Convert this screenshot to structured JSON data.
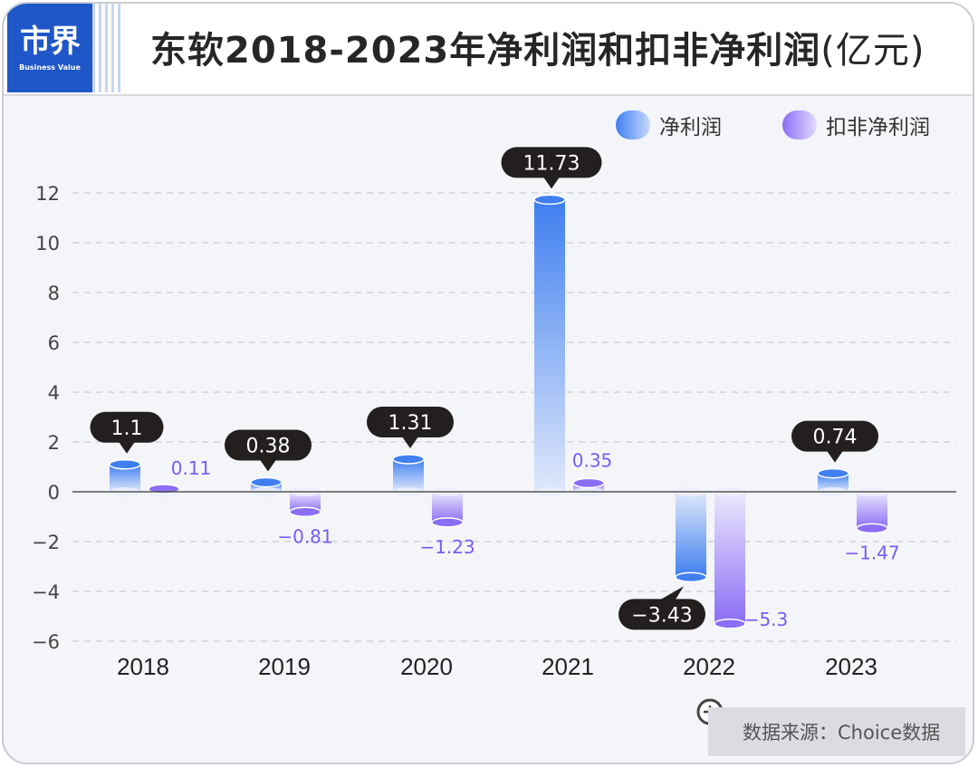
{
  "header": {
    "logo_main": "市界",
    "logo_sub": "Business Value",
    "title": "东软2018-2023年净利润和扣非净利润",
    "title_unit": "(亿元)"
  },
  "legend": [
    {
      "label": "净利润",
      "color": "#3f7ff0"
    },
    {
      "label": "扣非净利润",
      "color": "#8b6ef5"
    }
  ],
  "source": "数据来源：Choice数据",
  "chart_data": {
    "type": "bar",
    "categories": [
      "2018",
      "2019",
      "2020",
      "2021",
      "2022",
      "2023"
    ],
    "series": [
      {
        "name": "净利润",
        "values": [
          1.1,
          0.38,
          1.31,
          11.73,
          -3.43,
          0.74
        ],
        "labels": [
          "1.1",
          "0.38",
          "1.31",
          "11.73",
          "−3.43",
          "0.74"
        ]
      },
      {
        "name": "扣非净利润",
        "values": [
          0.11,
          -0.81,
          -1.23,
          0.35,
          -5.3,
          -1.47
        ],
        "labels": [
          "0.11",
          "−0.81",
          "−1.23",
          "0.35",
          "−5.3",
          "−1.47"
        ]
      }
    ],
    "ylim": [
      -6,
      12
    ],
    "yticks": [
      12,
      10,
      8,
      6,
      4,
      2,
      0,
      -2,
      -4,
      -6
    ],
    "ytick_labels": [
      "12",
      "10",
      "8",
      "6",
      "4",
      "2",
      "0",
      "−2",
      "−4",
      "−6"
    ],
    "grid": true,
    "legend_position": "top-right"
  }
}
